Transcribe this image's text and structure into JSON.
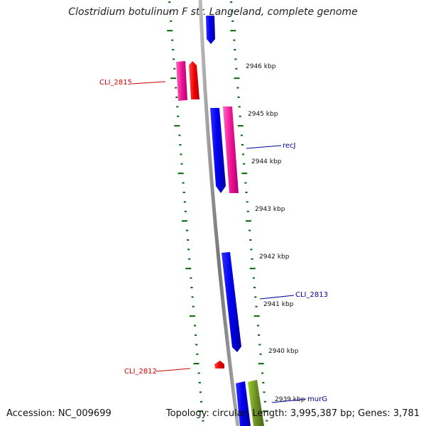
{
  "title": "Clostridium botulinum F str. Langeland, complete genome",
  "footer": {
    "accession": "Accession: NC_009699",
    "info": "Topology: circular; Length: 3,995,387 bp; Genes: 3,781"
  },
  "ruler": {
    "ticks": [
      "2946 kbp",
      "2945 kbp",
      "2944 kbp",
      "2943 kbp",
      "2942 kbp",
      "2941 kbp",
      "2940 kbp",
      "2939 kbp"
    ]
  },
  "genes": {
    "labels": [
      "CLI_2815",
      "recJ",
      "CLI_2813",
      "CLI_2812",
      "murG"
    ]
  },
  "colors": {
    "forward_cds": "#0000ee",
    "reverse_cds": "#ee0000",
    "pink_track": "#ee1493",
    "olive_track": "#6b8e23",
    "backbone": "#888888",
    "tick_green": "#006600",
    "label_red": "#cc0000",
    "label_blue": "#000099"
  }
}
